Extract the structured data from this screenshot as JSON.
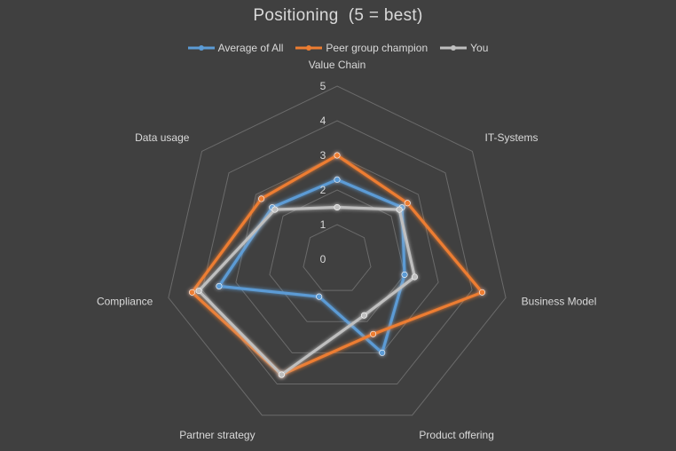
{
  "chart_data": {
    "type": "radar",
    "title": "Positioning  (5 = best)",
    "categories": [
      "Value Chain",
      "IT-Systems",
      "Business Model",
      "Product offering",
      "Partner strategy",
      "Compliance",
      "Data usage"
    ],
    "r_ticks": [
      "0",
      "1",
      "2",
      "3",
      "4",
      "5"
    ],
    "rlim": [
      0,
      5
    ],
    "grid": true,
    "legend_position": "top",
    "series": [
      {
        "name": "Average of All",
        "color": "#5b9bd5",
        "values": [
          2.3,
          2.4,
          2.0,
          3.0,
          1.2,
          3.5,
          2.4
        ]
      },
      {
        "name": "Peer group champion",
        "color": "#ed7d31",
        "values": [
          3.0,
          2.6,
          4.3,
          2.4,
          3.7,
          4.3,
          2.8
        ]
      },
      {
        "name": "You",
        "color": "#bfbfbf",
        "values": [
          1.5,
          2.3,
          2.3,
          1.8,
          3.7,
          4.1,
          2.3
        ]
      }
    ]
  }
}
